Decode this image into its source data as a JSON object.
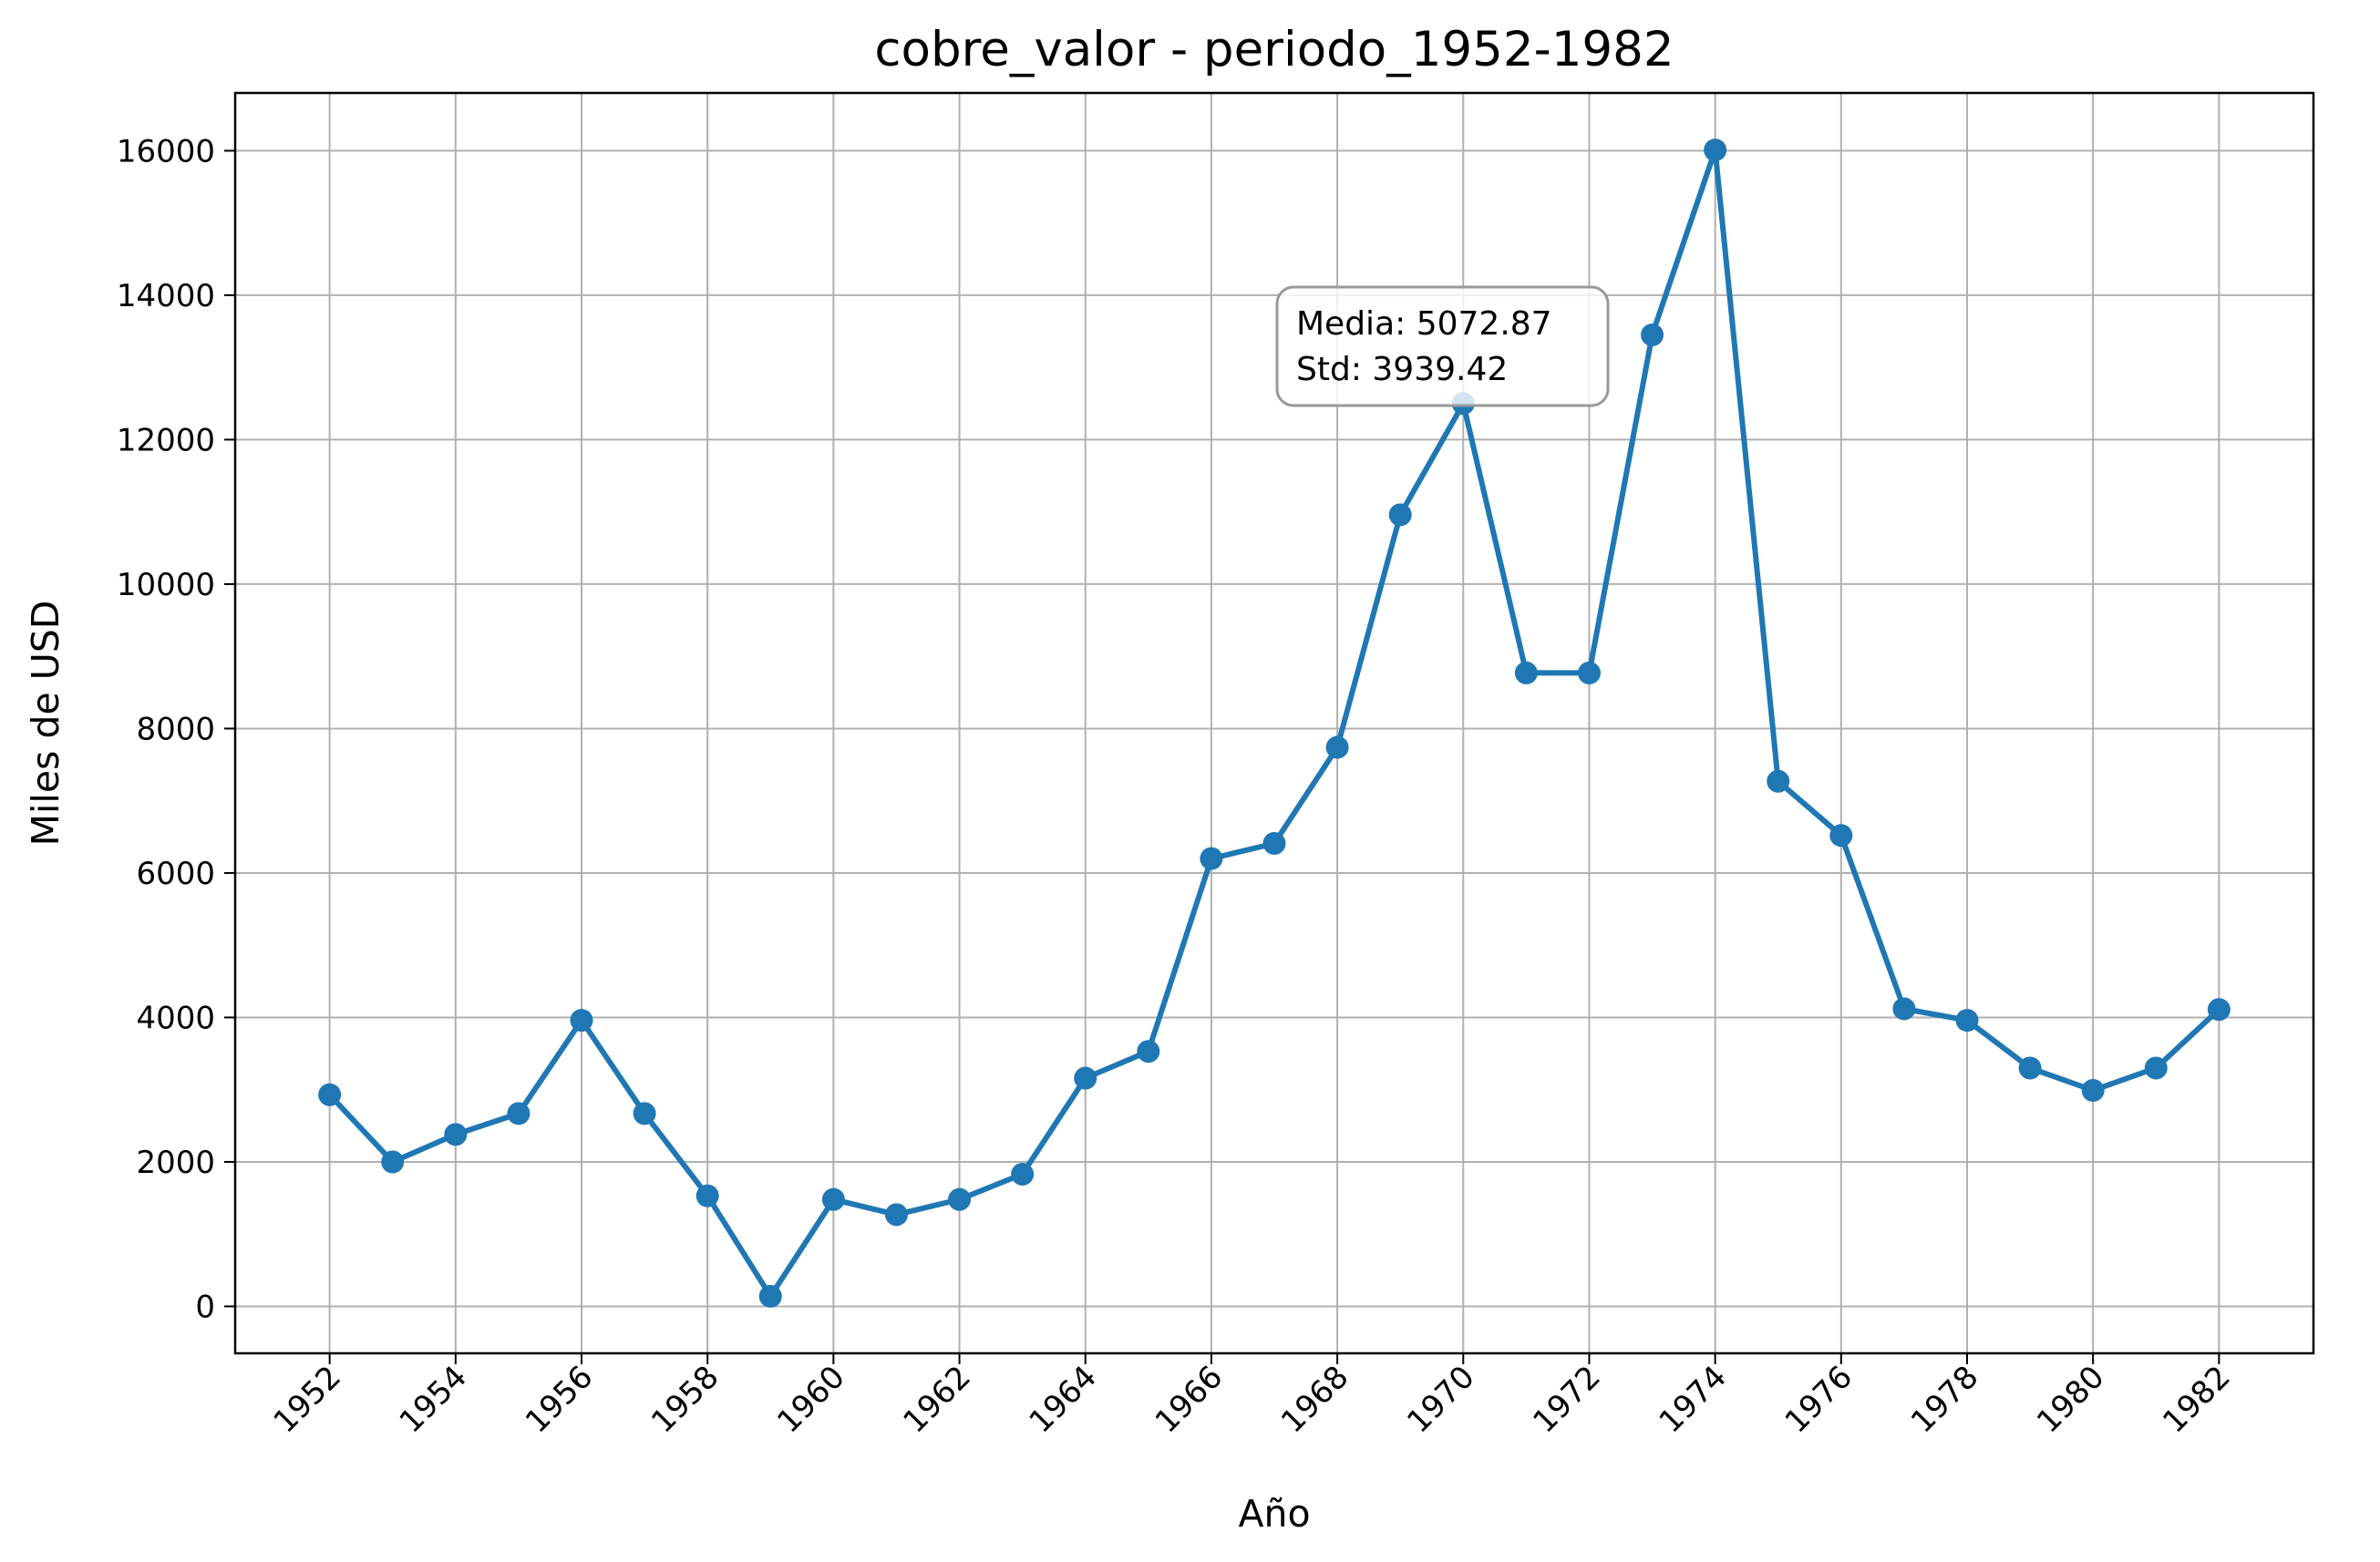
{
  "chart_data": {
    "type": "line",
    "title": "cobre_valor - periodo_1952-1982",
    "xlabel": "Año",
    "ylabel": "Miles de USD",
    "xlim": [
      1950.5,
      1983.5
    ],
    "ylim": [
      -650,
      16800
    ],
    "xticks": [
      1952,
      1954,
      1956,
      1958,
      1960,
      1962,
      1964,
      1966,
      1968,
      1970,
      1972,
      1974,
      1976,
      1978,
      1980,
      1982
    ],
    "yticks": [
      0,
      2000,
      4000,
      6000,
      8000,
      10000,
      12000,
      14000,
      16000
    ],
    "grid": true,
    "series": [
      {
        "color": "#1f77b4",
        "x": [
          1952,
          1953,
          1954,
          1955,
          1956,
          1957,
          1958,
          1959,
          1960,
          1961,
          1962,
          1963,
          1964,
          1965,
          1966,
          1967,
          1968,
          1969,
          1970,
          1971,
          1972,
          1973,
          1974,
          1975,
          1976,
          1977,
          1978,
          1979,
          1980,
          1981,
          1982
        ],
        "y": [
          2930,
          2000,
          2380,
          2670,
          3960,
          2670,
          1530,
          140,
          1480,
          1270,
          1480,
          1830,
          3160,
          3530,
          6200,
          6410,
          7740,
          10960,
          12500,
          8770,
          8770,
          13450,
          16010,
          7270,
          6520,
          4120,
          3960,
          3300,
          2990,
          3300,
          4110
        ]
      }
    ],
    "annotation": {
      "line1": "Media: 5072.87",
      "line2": "Std: 3939.42",
      "anchor": "upper-middle"
    }
  }
}
